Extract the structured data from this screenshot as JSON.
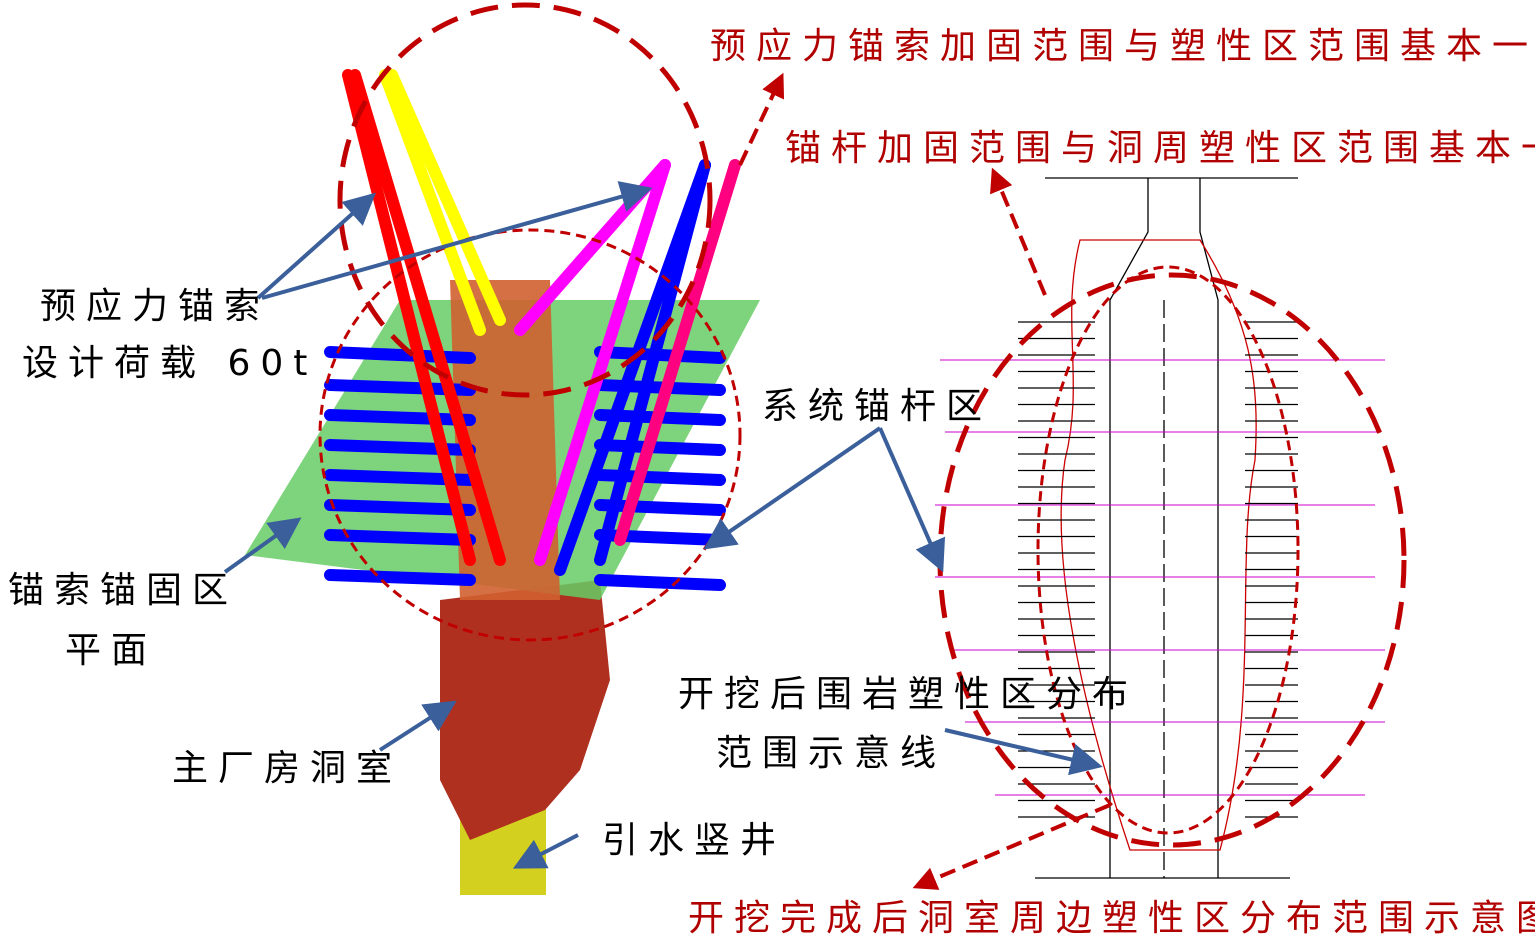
{
  "labels": {
    "red_top": "预应力锚索加固范围与塑性区范围基本一致",
    "red_middle": "锚杆加固范围与洞周塑性区范围基本一致",
    "red_bottom": "开挖完成后洞室周边塑性区分布范围示意图",
    "anchor_cable_line1": "预应力锚索",
    "anchor_cable_line2": "设计荷载 60t",
    "plane_line1": "锚索锚固区",
    "plane_line2": "平面",
    "cavern": "主厂房洞室",
    "shaft": "引水竖井",
    "bolt": "系统锚杆区",
    "plastic_line1": "开挖后围岩塑性区分布",
    "plastic_line2": "范围示意线"
  }
}
